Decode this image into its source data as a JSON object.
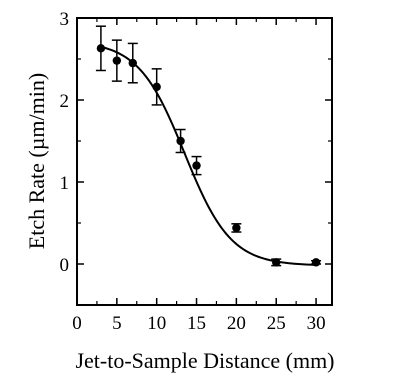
{
  "chart_data": {
    "type": "scatter",
    "title": "",
    "xlabel": "Jet-to-Sample Distance (mm)",
    "ylabel": "Etch Rate (µm/min)",
    "xlim": [
      0,
      32
    ],
    "ylim": [
      -0.5,
      3
    ],
    "xticks": [
      0,
      5,
      10,
      15,
      20,
      25,
      30
    ],
    "yticks": [
      0,
      1,
      2,
      3
    ],
    "grid": false,
    "legend": "none",
    "series": [
      {
        "marker": "filled-circle",
        "points": [
          {
            "x": 3,
            "y": 2.63,
            "err": 0.27
          },
          {
            "x": 5,
            "y": 2.48,
            "err": 0.25
          },
          {
            "x": 7,
            "y": 2.45,
            "err": 0.24
          },
          {
            "x": 10,
            "y": 2.16,
            "err": 0.22
          },
          {
            "x": 13,
            "y": 1.5,
            "err": 0.14
          },
          {
            "x": 15,
            "y": 1.2,
            "err": 0.11
          },
          {
            "x": 20,
            "y": 0.44,
            "err": 0.05
          },
          {
            "x": 25,
            "y": 0.02,
            "err": 0.04
          },
          {
            "x": 30,
            "y": 0.02,
            "err": 0.02
          }
        ]
      }
    ],
    "fit_curve": {
      "type": "sigmoid",
      "top": 2.72,
      "bottom": -0.02,
      "midpoint": 13.5,
      "width": 2.9,
      "x_range": [
        3,
        30
      ]
    }
  }
}
